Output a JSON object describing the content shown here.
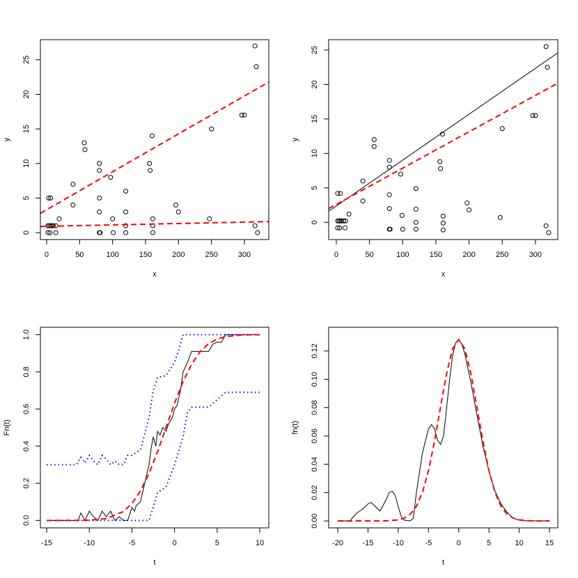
{
  "chart_data": [
    {
      "type": "scatter",
      "xlabel": "x",
      "ylabel": "y",
      "x": [
        3,
        6,
        2,
        4,
        6,
        8,
        10,
        14,
        2,
        5,
        14,
        19,
        40,
        40,
        57,
        58,
        80,
        80,
        80,
        80,
        80,
        81,
        97,
        100,
        101,
        120,
        120,
        120,
        120,
        156,
        157,
        160,
        161,
        161,
        161,
        196,
        200,
        247,
        250,
        296,
        300,
        316,
        318,
        316,
        320
      ],
      "values": [
        5,
        5,
        1,
        1,
        1,
        1,
        1,
        1,
        0,
        0,
        0,
        2,
        7,
        4,
        13,
        12,
        10,
        9,
        5,
        3,
        0,
        0,
        8,
        2,
        0,
        6,
        3,
        1,
        0,
        10,
        9,
        14,
        2,
        1,
        0,
        4,
        3,
        2,
        15,
        17,
        17,
        27,
        24,
        1,
        0
      ],
      "color": "#000000",
      "lines": [
        {
          "intercept": 3.32,
          "slope": 0.0548,
          "color": "#ff0000",
          "dash": true
        },
        {
          "intercept": 0.92,
          "slope": 0.002,
          "color": "#ff0000",
          "dash": true
        }
      ],
      "xlim": [
        -9.5,
        337
      ],
      "ylim": [
        -1.0,
        27.9
      ],
      "xticks": [
        0,
        50,
        100,
        150,
        200,
        250,
        300
      ],
      "yticks": [
        0,
        5,
        10,
        15,
        20,
        25
      ]
    },
    {
      "type": "scatter",
      "xlabel": "x",
      "ylabel": "y",
      "x": [
        2,
        6,
        2,
        4,
        6,
        8,
        11,
        14,
        2,
        5,
        13,
        19,
        40,
        40,
        57,
        57,
        80,
        80,
        80,
        80,
        80,
        81,
        97,
        99,
        100,
        120,
        120,
        120,
        120,
        156,
        157,
        160,
        161,
        161,
        161,
        197,
        200,
        247,
        250,
        296,
        300,
        316,
        318,
        316,
        320
      ],
      "values": [
        4.2,
        4.2,
        0.2,
        0.2,
        0.2,
        0.2,
        0.2,
        0.2,
        -0.8,
        -0.8,
        -0.8,
        1.2,
        6,
        3.1,
        12,
        11,
        9,
        8,
        4,
        2,
        -1,
        -1,
        7,
        1,
        -1,
        4.9,
        1.9,
        0,
        -1,
        8.8,
        7.8,
        12.8,
        0.9,
        -0.1,
        -1.1,
        2.8,
        1.8,
        0.7,
        13.6,
        15.5,
        15.5,
        25.5,
        22.5,
        -0.5,
        -1.5
      ],
      "color": "#000000",
      "lines": [
        {
          "intercept": 2.37,
          "slope": 0.0666,
          "color": "#000000",
          "dash": false
        },
        {
          "intercept": 2.6,
          "slope": 0.0527,
          "color": "#ff0000",
          "dash": true
        }
      ],
      "xlim": [
        -11.5,
        333.7
      ],
      "ylim": [
        -2.5,
        26.5
      ],
      "xticks": [
        0,
        50,
        100,
        150,
        200,
        250,
        300
      ],
      "yticks": [
        0,
        5,
        10,
        15,
        20,
        25
      ]
    },
    {
      "type": "line",
      "xlabel": "t",
      "ylabel": "Fn(t)",
      "series": [
        {
          "color": "#000000",
          "style": "solid",
          "x": [
            -15,
            -11.3,
            -11,
            -10.5,
            -10,
            -9.5,
            -9,
            -8.5,
            -8,
            -7.5,
            -7,
            -6.5,
            -6,
            -5.5,
            -5,
            -4.7,
            -4.5,
            -4,
            -3.5,
            -3,
            -2.7,
            -2.5,
            -2.2,
            -2,
            -1.7,
            -1.4,
            -1,
            -0.7,
            -0.3,
            0,
            0.3,
            0.7,
            1,
            1.5,
            2,
            4,
            4.5,
            5,
            5.5,
            6,
            10
          ],
          "values": [
            0,
            0,
            0.04,
            0,
            0.05,
            0.02,
            0,
            0.05,
            0.02,
            0.05,
            0,
            0.02,
            0,
            0,
            0.07,
            0.05,
            0.08,
            0.1,
            0.2,
            0.3,
            0.4,
            0.45,
            0.4,
            0.48,
            0.46,
            0.5,
            0.48,
            0.52,
            0.55,
            0.6,
            0.62,
            0.7,
            0.8,
            0.85,
            0.91,
            0.91,
            0.95,
            0.96,
            0.96,
            1,
            1
          ]
        },
        {
          "color": "#0000ff",
          "style": "dotted",
          "x": [
            -15,
            -11.5,
            -11,
            -10.5,
            -10,
            -9.5,
            -9,
            -8.5,
            -8,
            -7.5,
            -7,
            -6.5,
            -6,
            -5.5,
            -5,
            -4,
            -3,
            -2.5,
            -2,
            -1,
            0,
            0.5,
            1,
            10
          ],
          "values": [
            0.3,
            0.3,
            0.34,
            0.31,
            0.35,
            0.32,
            0.3,
            0.35,
            0.33,
            0.3,
            0.32,
            0.3,
            0.3,
            0.35,
            0.35,
            0.38,
            0.55,
            0.7,
            0.77,
            0.78,
            0.85,
            0.92,
            1,
            1
          ]
        },
        {
          "color": "#0000ff",
          "style": "dotted",
          "x": [
            -15,
            -3,
            -2.5,
            -2,
            -1,
            0,
            1,
            1.5,
            2,
            4,
            5,
            6,
            10
          ],
          "values": [
            0,
            0,
            0.07,
            0.15,
            0.18,
            0.3,
            0.45,
            0.58,
            0.61,
            0.61,
            0.65,
            0.69,
            0.69
          ]
        },
        {
          "color": "#ff0000",
          "style": "dashed",
          "x": [
            -15,
            -12,
            -10,
            -8,
            -6,
            -5,
            -4,
            -3,
            -2,
            -1,
            0,
            1,
            2,
            3,
            4,
            5,
            6,
            8,
            10
          ],
          "values": [
            0,
            0.0001,
            0.0013,
            0.0099,
            0.048,
            0.091,
            0.159,
            0.252,
            0.369,
            0.5,
            0.631,
            0.748,
            0.841,
            0.909,
            0.952,
            0.977,
            0.99,
            0.999,
            1
          ]
        }
      ],
      "xlim": [
        -15.74,
        11.06
      ],
      "ylim": [
        -0.04,
        1.04
      ],
      "xticks": [
        -15,
        -10,
        -5,
        0,
        5,
        10
      ],
      "yticks": [
        {
          "value": 0,
          "label": "0.0"
        },
        0.2,
        0.4,
        0.6,
        0.8,
        {
          "value": 1,
          "label": "1.0"
        }
      ]
    },
    {
      "type": "line",
      "xlabel": "t",
      "ylabel": "fn(t)",
      "series": [
        {
          "color": "#000000",
          "style": "solid",
          "x": [
            -20,
            -18,
            -17,
            -16,
            -15,
            -14.5,
            -14,
            -13,
            -12,
            -11.5,
            -11,
            -10.5,
            -10,
            -9.5,
            -9,
            -8,
            -7.5,
            -7,
            -6,
            -5,
            -4.5,
            -4,
            -3.5,
            -3,
            -2.5,
            -2,
            -1.5,
            -1,
            -0.5,
            0,
            0.5,
            1,
            2,
            3,
            4,
            5,
            6,
            7,
            8,
            9,
            10,
            11,
            15
          ],
          "values": [
            0,
            0,
            0.005,
            0.008,
            0.012,
            0.013,
            0.011,
            0.007,
            0.015,
            0.02,
            0.021,
            0.018,
            0.01,
            0.003,
            0.0005,
            0,
            0.002,
            0.02,
            0.048,
            0.065,
            0.068,
            0.065,
            0.057,
            0.054,
            0.06,
            0.08,
            0.1,
            0.117,
            0.126,
            0.128,
            0.125,
            0.118,
            0.098,
            0.075,
            0.053,
            0.035,
            0.021,
            0.012,
            0.006,
            0.002,
            0.0005,
            0.0001,
            0
          ]
        },
        {
          "color": "#ff0000",
          "style": "dashed",
          "x": [
            -20,
            -12,
            -10,
            -9,
            -8,
            -7,
            -6,
            -5,
            -4,
            -3,
            -2,
            -1,
            0,
            1,
            2,
            3,
            4,
            5,
            6,
            7,
            8,
            9,
            10,
            12,
            15
          ],
          "values": [
            0,
            0,
            0.00075,
            0.002,
            0.0048,
            0.0103,
            0.0201,
            0.0354,
            0.0563,
            0.0806,
            0.1042,
            0.1216,
            0.128,
            0.1216,
            0.1042,
            0.0806,
            0.0563,
            0.0354,
            0.0201,
            0.0103,
            0.0048,
            0.002,
            0.00075,
            0,
            0
          ]
        }
      ],
      "xlim": [
        -21.5,
        16.38
      ],
      "ylim": [
        -0.0049,
        0.1367
      ],
      "xticks": [
        -20,
        -15,
        -10,
        -5,
        0,
        5,
        10,
        15
      ],
      "yticks": [
        {
          "value": 0,
          "label": "0.00"
        },
        0.02,
        0.04,
        0.06,
        0.08,
        {
          "value": 0.1,
          "label": "0.10"
        },
        0.12
      ]
    }
  ]
}
